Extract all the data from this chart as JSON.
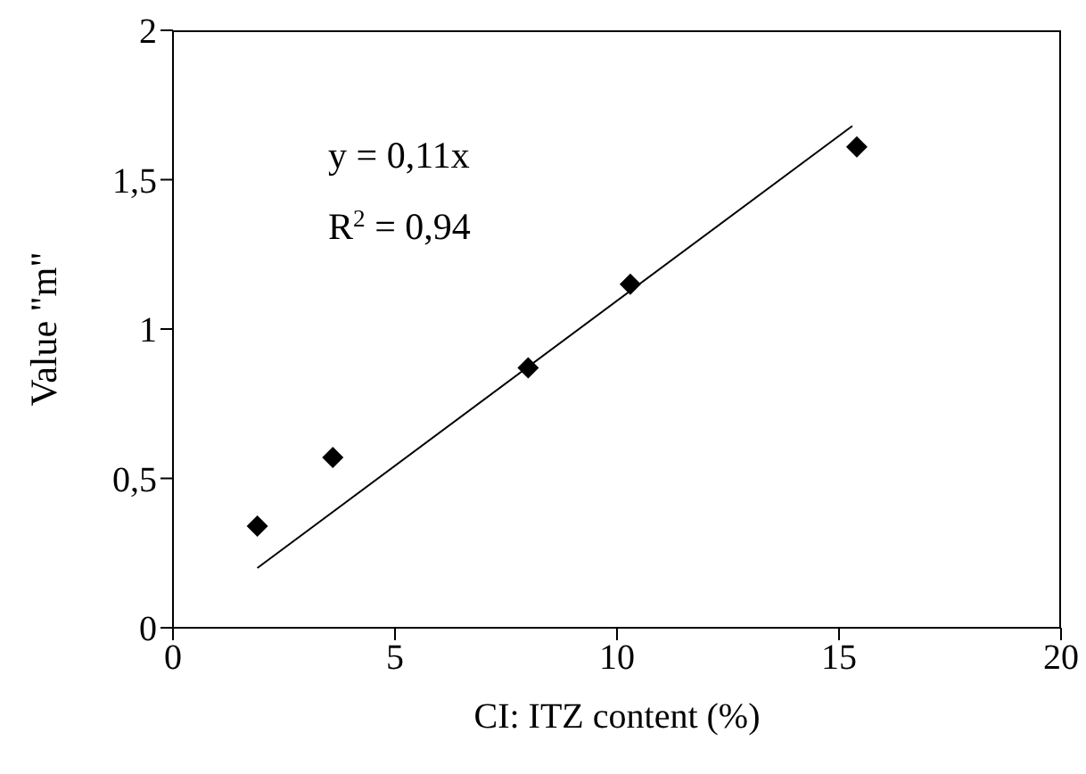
{
  "chart_data": {
    "type": "scatter",
    "xlabel": "CI: ITZ content (%)",
    "ylabel": "Value \"m\"",
    "x": [
      1.9,
      3.6,
      8.0,
      10.3,
      15.4
    ],
    "series": [
      {
        "color": "#000000",
        "values": [
          0.34,
          0.57,
          0.87,
          1.15,
          1.61
        ]
      },
      {
        "type": "line",
        "color": "#000000",
        "x": [
          1.9,
          15.3
        ],
        "values": [
          0.2,
          1.68
        ],
        "marker": "none"
      }
    ],
    "annotations": [
      "y = 0,11x",
      "R$^{2}$ = 0,94"
    ],
    "xlim": [
      0,
      20
    ],
    "xticks": [
      0,
      5,
      10,
      15,
      20
    ],
    "ylim": [
      0,
      2
    ],
    "yticks": [
      0,
      {
        "value": 0.5,
        "label": "0,5"
      },
      1,
      {
        "value": 1.5,
        "label": "1,5"
      },
      2
    ],
    "marker": "diamond"
  }
}
